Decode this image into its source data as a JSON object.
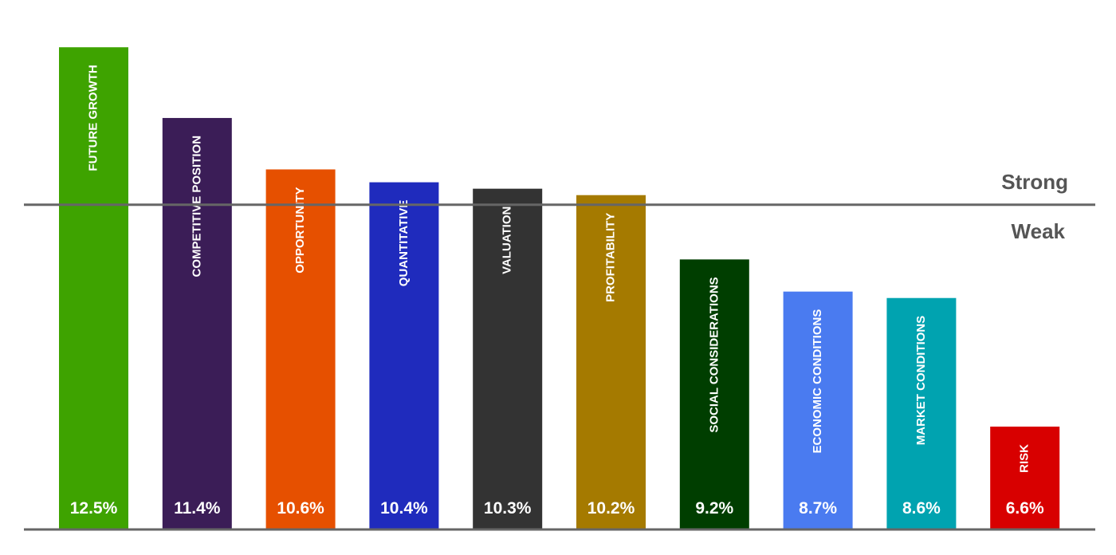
{
  "chart_data": {
    "type": "bar",
    "categories": [
      "FUTURE GROWTH",
      "COMPETITIVE POSITION",
      "OPPORTUNITY",
      "QUANTITATIVE",
      "VALUATION",
      "PROFITABILITY",
      "SOCIAL CONSIDERATIONS",
      "ECONOMIC CONDITIONS",
      "MARKET CONDITIONS",
      "RISK"
    ],
    "values": [
      12.5,
      11.4,
      10.6,
      10.4,
      10.3,
      10.2,
      9.2,
      8.7,
      8.6,
      6.6
    ],
    "value_labels": [
      "12.5%",
      "11.4%",
      "10.6%",
      "10.4%",
      "10.3%",
      "10.2%",
      "9.2%",
      "8.7%",
      "8.6%",
      "6.6%"
    ],
    "colors": [
      "#3ea300",
      "#3b1d57",
      "#e65000",
      "#1f2bbd",
      "#333333",
      "#a57a00",
      "#003e00",
      "#4a7bf0",
      "#00a3b0",
      "#d80000"
    ],
    "threshold": 10.05,
    "threshold_labels": {
      "above": "Strong",
      "below": "Weak"
    },
    "threshold_color": "#666666",
    "ylim": [
      5,
      12.9
    ],
    "grid": false,
    "title": "",
    "xlabel": "",
    "ylabel": ""
  }
}
